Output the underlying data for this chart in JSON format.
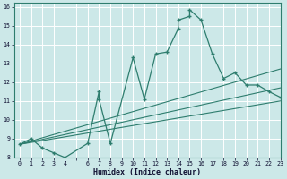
{
  "xlabel": "Humidex (Indice chaleur)",
  "xlim": [
    -0.5,
    23
  ],
  "ylim": [
    8,
    16.2
  ],
  "xtick_labels": [
    "0",
    "1",
    "2",
    "3",
    "4",
    "6",
    "7",
    "8",
    "9",
    "10",
    "11",
    "12",
    "13",
    "14",
    "15",
    "16",
    "17",
    "18",
    "19",
    "20",
    "21",
    "22",
    "23"
  ],
  "yticks": [
    8,
    9,
    10,
    11,
    12,
    13,
    14,
    15,
    16
  ],
  "bg_color": "#cce8e8",
  "line_color": "#2e7d6e",
  "grid_color": "#ffffff",
  "curve_x": [
    0,
    1,
    2,
    3,
    4,
    6,
    7,
    7,
    8,
    10,
    11,
    12,
    13,
    14,
    14,
    15,
    15,
    16,
    17,
    18,
    19,
    20,
    21,
    22,
    23
  ],
  "curve_y": [
    8.7,
    9.0,
    8.5,
    8.25,
    8.0,
    8.75,
    11.5,
    11.1,
    8.75,
    13.3,
    11.1,
    13.5,
    13.6,
    14.85,
    15.3,
    15.5,
    15.85,
    15.3,
    13.5,
    12.2,
    12.5,
    11.85,
    11.85,
    11.5,
    11.2
  ],
  "line1_x": [
    0,
    23
  ],
  "line1_y": [
    8.7,
    12.7
  ],
  "line2_x": [
    0,
    23
  ],
  "line2_y": [
    8.7,
    11.7
  ],
  "line3_x": [
    0,
    23
  ],
  "line3_y": [
    8.7,
    11.0
  ]
}
